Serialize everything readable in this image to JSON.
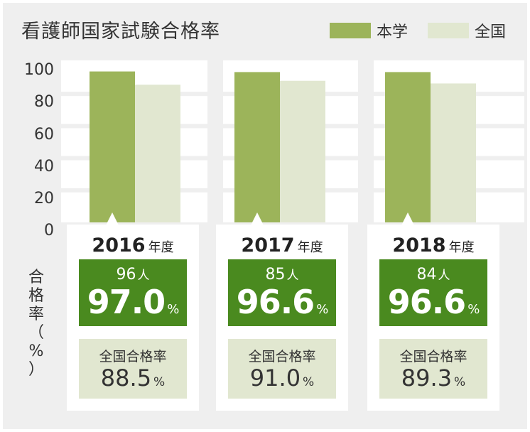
{
  "title": "看護師国家試験合格率",
  "colors": {
    "school": "#9cb45a",
    "national": "#e1e7d0",
    "highlight": "#4a8a1f"
  },
  "legend": [
    {
      "label": "本学",
      "color": "#9cb45a"
    },
    {
      "label": "全国",
      "color": "#e1e7d0"
    }
  ],
  "ylabel_chars": [
    "合",
    "格",
    "率",
    "（",
    "%",
    "）"
  ],
  "chart_data": {
    "type": "bar",
    "title": "看護師国家試験合格率",
    "ylabel": "合格率（%）",
    "ylim": [
      0,
      100
    ],
    "yticks": [
      "0",
      "20",
      "40",
      "60",
      "80",
      "100"
    ],
    "categories": [
      "2016",
      "2017",
      "2018"
    ],
    "series": [
      {
        "name": "本学",
        "values": [
          97.0,
          96.6,
          96.6
        ]
      },
      {
        "name": "全国",
        "values": [
          88.5,
          91.0,
          89.3
        ]
      }
    ],
    "grid": true,
    "legend_position": "top-right"
  },
  "cards": [
    {
      "year": "2016",
      "year_suffix": "年度",
      "count": "96",
      "count_unit": "人",
      "rate": "97.0",
      "rate_unit": "%",
      "national_label": "全国合格率",
      "national_rate": "88.5",
      "national_unit": "%"
    },
    {
      "year": "2017",
      "year_suffix": "年度",
      "count": "85",
      "count_unit": "人",
      "rate": "96.6",
      "rate_unit": "%",
      "national_label": "全国合格率",
      "national_rate": "91.0",
      "national_unit": "%"
    },
    {
      "year": "2018",
      "year_suffix": "年度",
      "count": "84",
      "count_unit": "人",
      "rate": "96.6",
      "rate_unit": "%",
      "national_label": "全国合格率",
      "national_rate": "89.3",
      "national_unit": "%"
    }
  ]
}
